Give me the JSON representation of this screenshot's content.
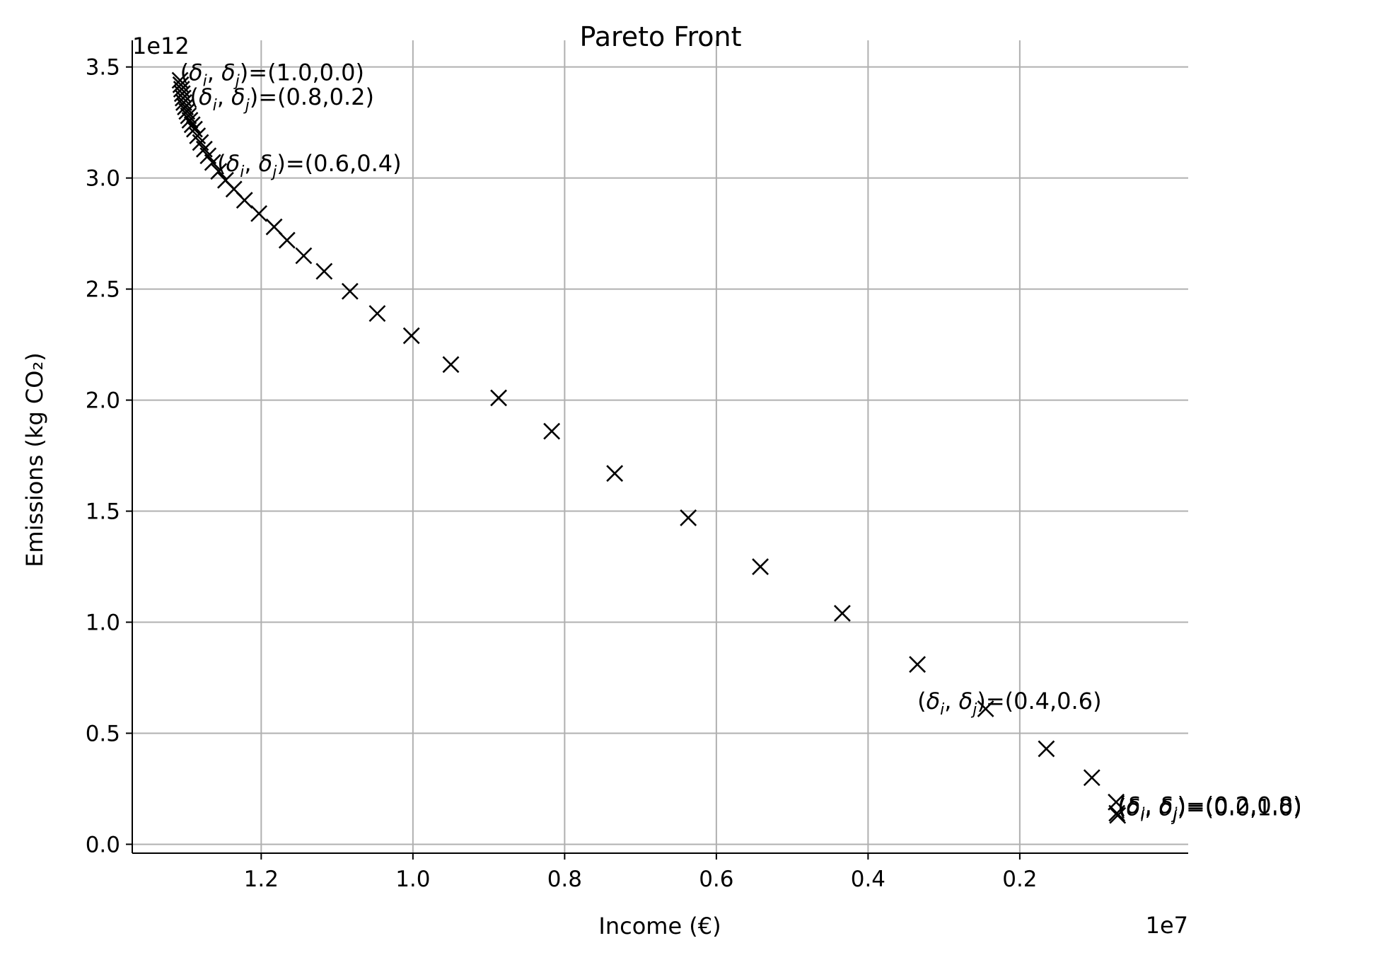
{
  "chart_data": {
    "type": "scatter",
    "title": "Pareto Front",
    "xlabel": "Income (€)",
    "ylabel": "Emissions (kg CO₂)",
    "x_offset_label": "1e7",
    "y_offset_label": "1e12",
    "x_axis_inverted": true,
    "xlim": [
      1.37,
      -0.022
    ],
    "ylim": [
      -0.04,
      3.62
    ],
    "x_ticks": [
      1.2,
      1.0,
      0.8,
      0.6,
      0.4,
      0.2
    ],
    "x_tick_labels": [
      "1.2",
      "1.0",
      "0.8",
      "0.6",
      "0.4",
      "0.2"
    ],
    "y_ticks": [
      0.0,
      0.5,
      1.0,
      1.5,
      2.0,
      2.5,
      3.0,
      3.5
    ],
    "y_tick_labels": [
      "0.0",
      "0.5",
      "1.0",
      "1.5",
      "2.0",
      "2.5",
      "3.0",
      "3.5"
    ],
    "grid": true,
    "marker": "x",
    "marker_color": "#000000",
    "x_units": "x 1e7 €",
    "y_units": "x 1e12 kg CO₂",
    "series": [
      {
        "x": [
          1.307,
          1.306,
          1.305,
          1.304,
          1.303,
          1.302,
          1.3,
          1.298,
          1.296,
          1.294,
          1.291,
          1.288,
          1.284,
          1.28,
          1.275,
          1.27,
          1.264,
          1.256,
          1.247,
          1.236,
          1.222,
          1.203,
          1.183,
          1.166,
          1.144,
          1.117,
          1.083,
          1.047,
          1.002,
          0.95,
          0.887,
          0.817,
          0.734,
          0.637,
          0.542,
          0.434,
          0.335,
          0.245,
          0.165,
          0.105,
          0.073,
          0.072,
          0.071
        ],
        "y": [
          3.44,
          3.42,
          3.4,
          3.38,
          3.36,
          3.34,
          3.32,
          3.3,
          3.28,
          3.26,
          3.24,
          3.22,
          3.19,
          3.16,
          3.13,
          3.1,
          3.07,
          3.03,
          2.99,
          2.95,
          2.9,
          2.84,
          2.78,
          2.72,
          2.65,
          2.58,
          2.49,
          2.39,
          2.29,
          2.16,
          2.01,
          1.86,
          1.67,
          1.47,
          1.25,
          1.04,
          0.81,
          0.61,
          0.43,
          0.3,
          0.19,
          0.14,
          0.13
        ]
      }
    ],
    "annotations": [
      {
        "text": "(δi, δj)=(1.0,0.0)",
        "x": 1.307,
        "y": 3.44
      },
      {
        "text": "(δi, δj)=(0.8,0.2)",
        "x": 1.294,
        "y": 3.33
      },
      {
        "text": "(δi, δj)=(0.6,0.4)",
        "x": 1.258,
        "y": 3.03
      },
      {
        "text": "(δi, δj)=(0.4,0.6)",
        "x": 0.335,
        "y": 0.61
      },
      {
        "text": "(δi, δj)=(0.2,0.8)",
        "x": 0.071,
        "y": 0.14
      },
      {
        "text": "(δi, δj)=(0.0,1.0)",
        "x": 0.071,
        "y": 0.13
      }
    ]
  }
}
